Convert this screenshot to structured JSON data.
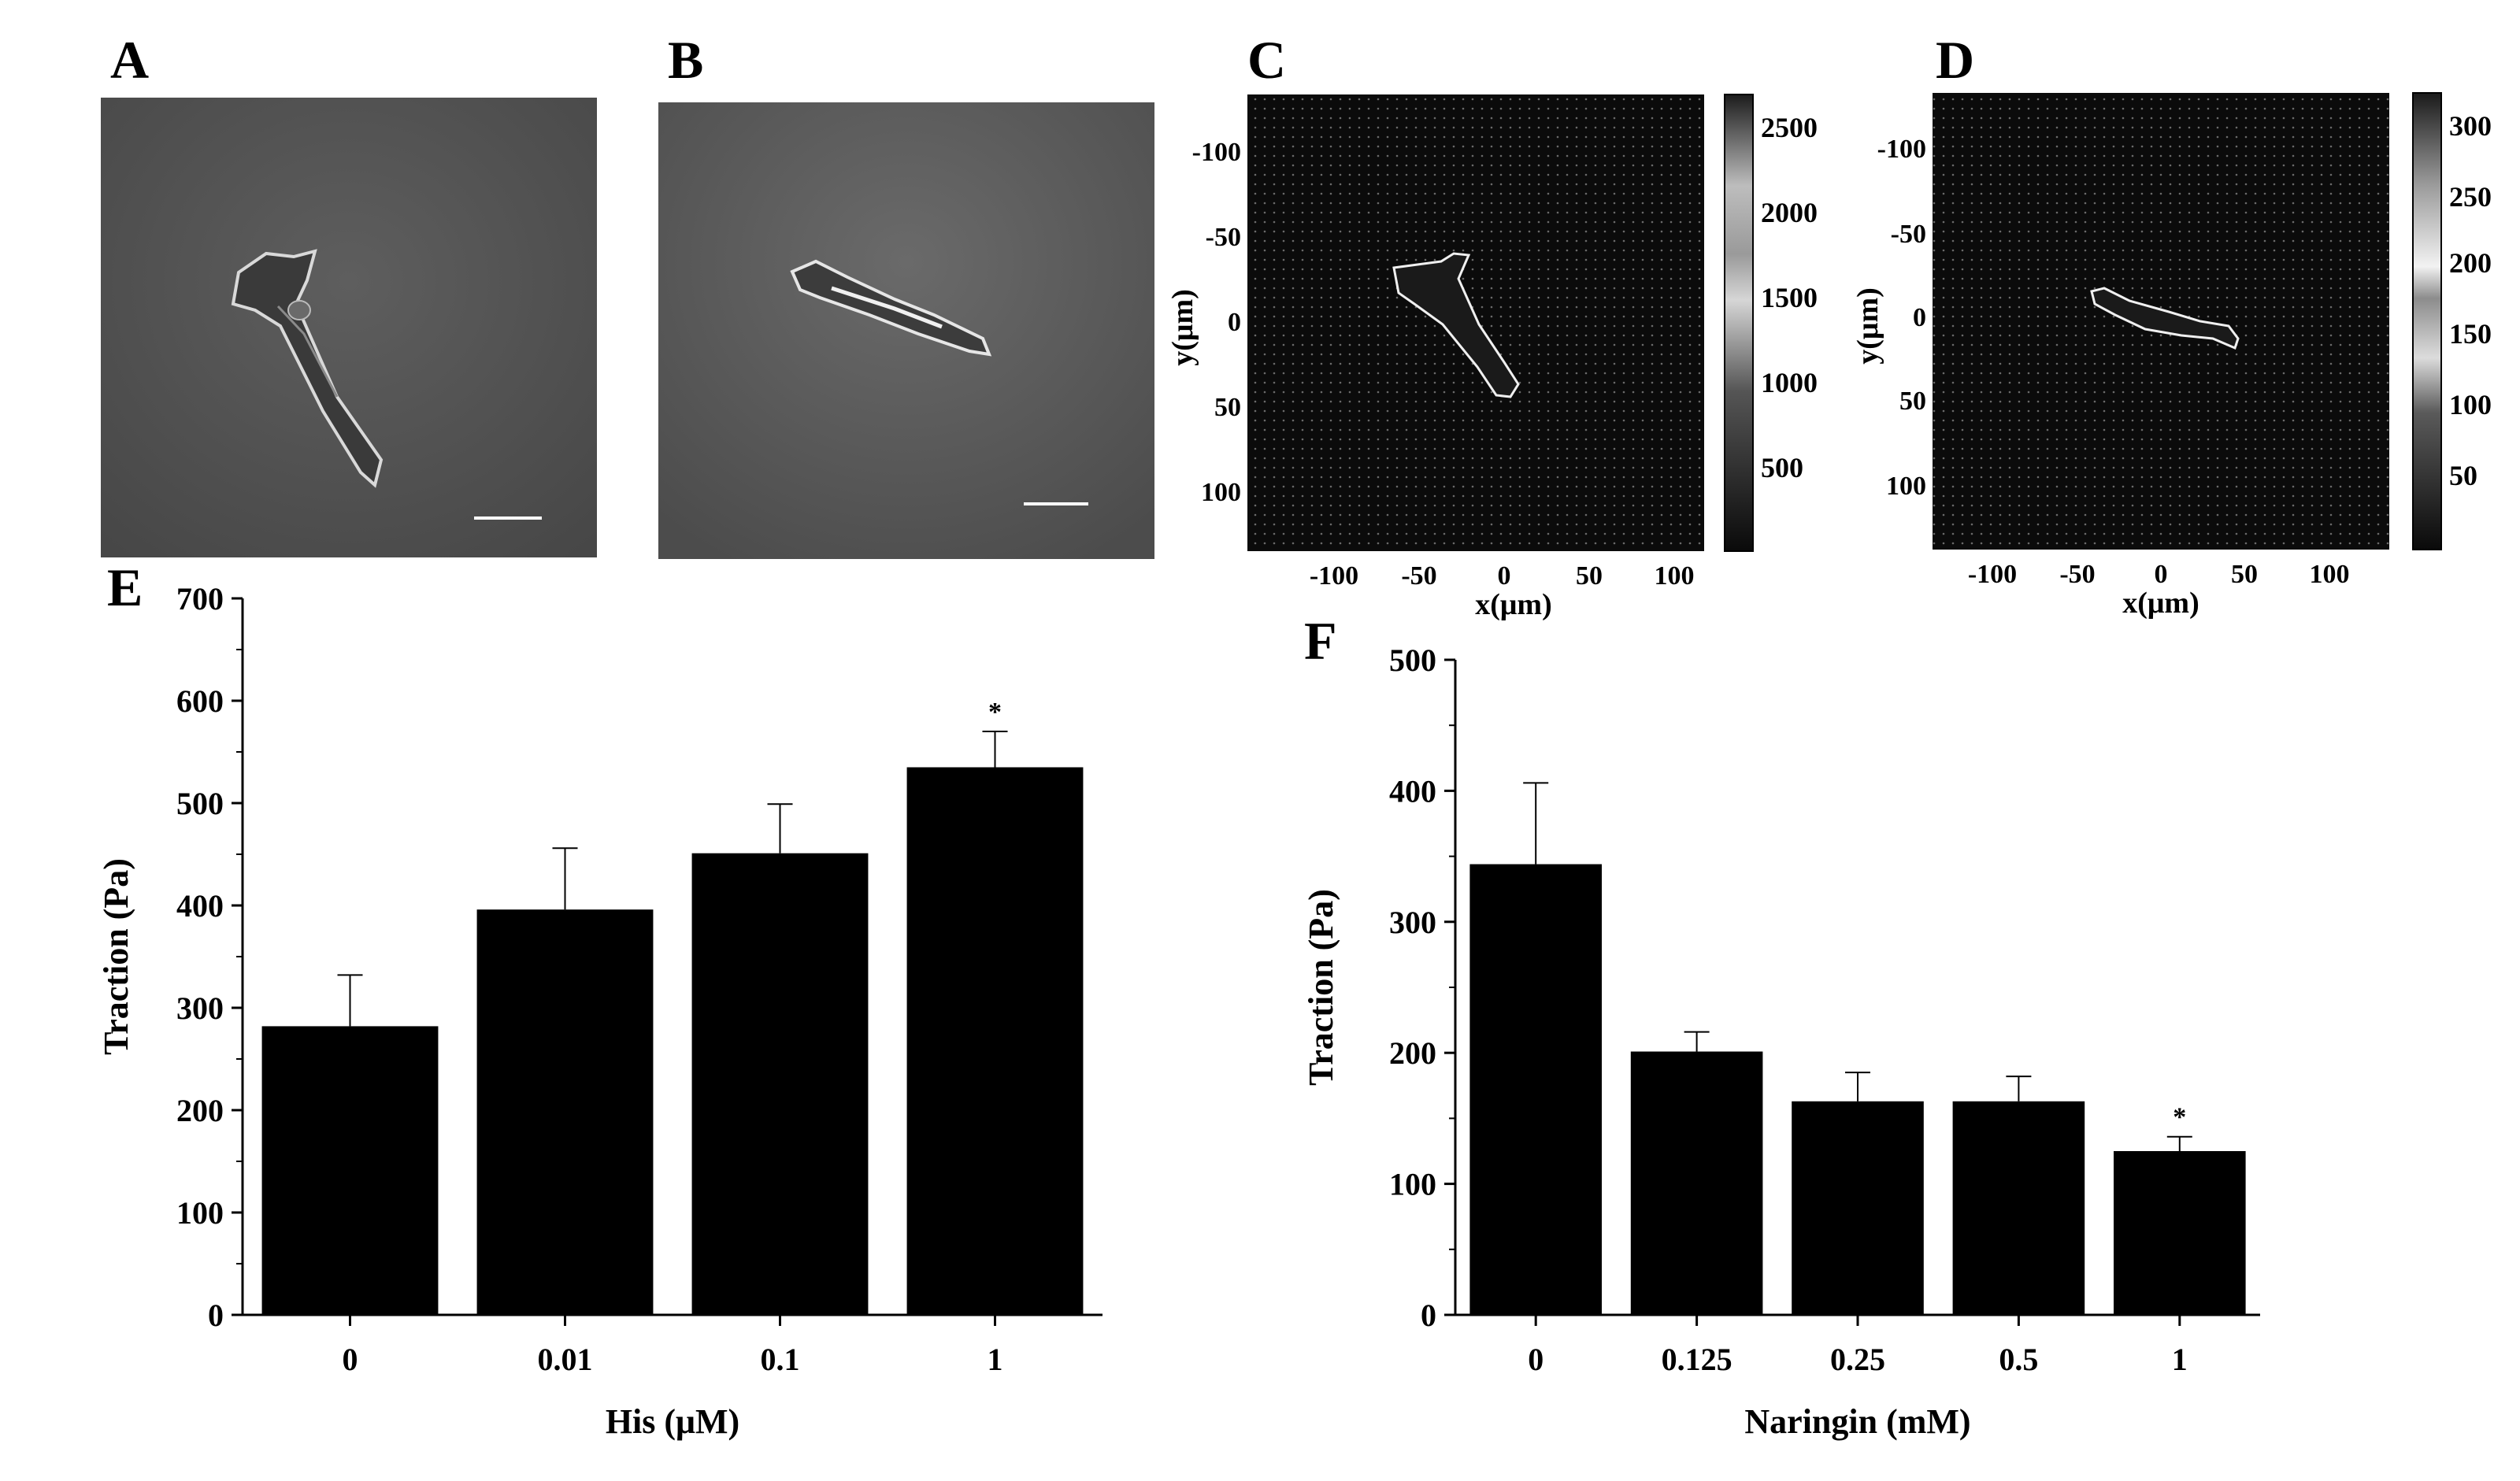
{
  "panels": {
    "A": {
      "letter": "A"
    },
    "B": {
      "letter": "B"
    },
    "C": {
      "letter": "C",
      "xlabel": "x(μm)",
      "ylabel": "y(μm)",
      "xticks": [
        "-100",
        "-50",
        "0",
        "50",
        "100"
      ],
      "yticks": [
        "-100",
        "-50",
        "0",
        "50",
        "100"
      ],
      "colorbar_ticks": [
        "2500",
        "2000",
        "1500",
        "1000",
        "500"
      ]
    },
    "D": {
      "letter": "D",
      "xlabel": "x(μm)",
      "ylabel": "y(μm)",
      "xticks": [
        "-100",
        "-50",
        "0",
        "50",
        "100"
      ],
      "yticks": [
        "-100",
        "-50",
        "0",
        "50",
        "100"
      ],
      "colorbar_ticks": [
        "300",
        "250",
        "200",
        "150",
        "100",
        "50"
      ]
    },
    "E": {
      "letter": "E"
    },
    "F": {
      "letter": "F"
    }
  },
  "chart_data": [
    {
      "panel": "E",
      "type": "bar",
      "categories": [
        "0",
        "0.01",
        "0.1",
        "1"
      ],
      "values": [
        282,
        396,
        451,
        535
      ],
      "errors": [
        50,
        60,
        48,
        35
      ],
      "annotations": [
        "",
        "",
        "",
        "*"
      ],
      "xlabel": "His (μM)",
      "ylabel": "Traction (Pa)",
      "ylim": [
        0,
        700
      ],
      "yticks": [
        0,
        100,
        200,
        300,
        400,
        500,
        600,
        700
      ],
      "bar_color": "#000000"
    },
    {
      "panel": "F",
      "type": "bar",
      "categories": [
        "0",
        "0.125",
        "0.25",
        "0.5",
        "1"
      ],
      "values": [
        344,
        201,
        163,
        163,
        125
      ],
      "errors": [
        62,
        15,
        22,
        19,
        11
      ],
      "annotations": [
        "",
        "",
        "",
        "",
        "*"
      ],
      "xlabel": "Naringin (mM)",
      "ylabel": "Traction (Pa)",
      "ylim": [
        0,
        500
      ],
      "yticks": [
        0,
        100,
        200,
        300,
        400,
        500
      ],
      "bar_color": "#000000"
    }
  ]
}
